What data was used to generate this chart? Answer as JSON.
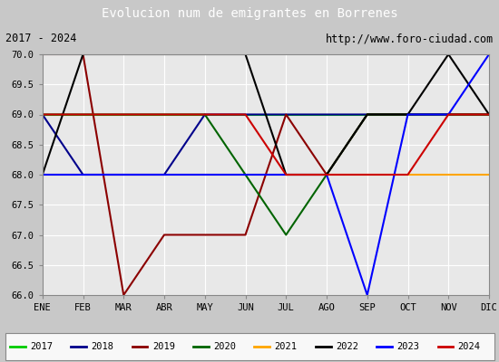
{
  "title": "Evolucion num de emigrantes en Borrenes",
  "subtitle_left": "2017 - 2024",
  "subtitle_right": "http://www.foro-ciudad.com",
  "months": [
    "ENE",
    "FEB",
    "MAR",
    "ABR",
    "MAY",
    "JUN",
    "JUL",
    "AGO",
    "SEP",
    "OCT",
    "NOV",
    "DIC"
  ],
  "series": {
    "2017": {
      "color": "#00cc00",
      "data_y": [
        69,
        69,
        69,
        69,
        69,
        69,
        69,
        69,
        69,
        69,
        69,
        69
      ]
    },
    "2018": {
      "color": "#00008b",
      "data_y": [
        69,
        68,
        68,
        68,
        69,
        69,
        69,
        69,
        69,
        69,
        69,
        69
      ]
    },
    "2019": {
      "color": "#8b0000",
      "data_y": [
        70,
        70,
        66,
        67,
        67,
        67,
        69,
        68,
        69,
        69,
        69,
        69
      ]
    },
    "2020": {
      "color": "#006400",
      "data_y": [
        69,
        69,
        69,
        69,
        69,
        68,
        67,
        68,
        69,
        69,
        69,
        69
      ]
    },
    "2021": {
      "color": "#ffa500",
      "data_y": [
        68,
        68,
        68,
        68,
        68,
        68,
        68,
        68,
        68,
        68,
        68,
        68
      ]
    },
    "2022": {
      "color": "#000000",
      "data_y": [
        68,
        70,
        70,
        70,
        70,
        70,
        68,
        68,
        69,
        69,
        70,
        69
      ]
    },
    "2023": {
      "color": "#0000ff",
      "data_y": [
        68,
        68,
        68,
        68,
        68,
        68,
        68,
        68,
        66,
        69,
        69,
        70
      ]
    },
    "2024": {
      "color": "#cc0000",
      "data_y": [
        69,
        69,
        69,
        69,
        69,
        69,
        68,
        68,
        68,
        68,
        69,
        69
      ]
    }
  },
  "ylim": [
    66.0,
    70.0
  ],
  "yticks": [
    66.0,
    66.5,
    67.0,
    67.5,
    68.0,
    68.5,
    69.0,
    69.5,
    70.0
  ],
  "title_bg_color": "#3a6bc8",
  "title_text_color": "#ffffff",
  "plot_bg_color": "#e8e8e8",
  "grid_color": "#ffffff",
  "border_color": "#888888",
  "legend_order": [
    "2017",
    "2018",
    "2019",
    "2020",
    "2021",
    "2022",
    "2023",
    "2024"
  ]
}
